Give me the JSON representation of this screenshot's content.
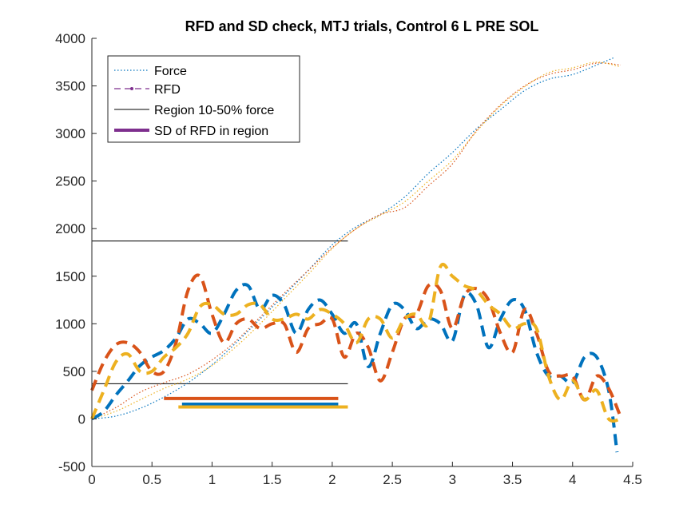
{
  "chart_data": {
    "type": "line",
    "title": "RFD and SD check, MTJ trials, Control 6 L PRE SOL",
    "xlabel": "",
    "ylabel": "",
    "xlim": [
      0,
      4.5
    ],
    "ylim": [
      -500,
      4000
    ],
    "x_ticks": [
      "0",
      "0.5",
      "1",
      "1.5",
      "2",
      "2.5",
      "3",
      "3.5",
      "4",
      "4.5"
    ],
    "y_ticks": [
      "-500",
      "0",
      "500",
      "1000",
      "1500",
      "2000",
      "2500",
      "3000",
      "3500",
      "4000"
    ],
    "grid": false,
    "legend_position": "top-left",
    "legend": [
      {
        "label": "Force",
        "style": "dotted"
      },
      {
        "label": "RFD",
        "style": "dashed-marker"
      },
      {
        "label": "Region 10-50% force",
        "style": "solid-thin"
      },
      {
        "label": "SD of RFD in region",
        "style": "solid-thick"
      }
    ],
    "colors": {
      "trial1": "#0072BD",
      "trial2": "#D95319",
      "trial3": "#EDB120",
      "legend_rfd": "#7E2F8E",
      "axis": "#262626",
      "region": "#000000"
    },
    "force_series": [
      {
        "name": "",
        "color": "#0072BD",
        "x": [
          0,
          0.2,
          0.4,
          0.6,
          0.8,
          1.0,
          1.2,
          1.4,
          1.6,
          1.8,
          2.0,
          2.2,
          2.4,
          2.6,
          2.8,
          3.0,
          3.2,
          3.4,
          3.6,
          3.8,
          4.0,
          4.2,
          4.35
        ],
        "y": [
          0,
          30,
          110,
          230,
          380,
          570,
          800,
          1050,
          1300,
          1560,
          1830,
          2020,
          2150,
          2330,
          2580,
          2800,
          3050,
          3250,
          3450,
          3570,
          3620,
          3720,
          3800
        ]
      },
      {
        "name": "",
        "color": "#D95319",
        "x": [
          0,
          0.2,
          0.4,
          0.6,
          0.8,
          1.0,
          1.2,
          1.4,
          1.6,
          1.8,
          2.0,
          2.2,
          2.4,
          2.6,
          2.8,
          3.0,
          3.2,
          3.4,
          3.6,
          3.8,
          4.0,
          4.2,
          4.4
        ],
        "y": [
          0,
          120,
          280,
          380,
          470,
          620,
          820,
          1070,
          1320,
          1560,
          1800,
          2000,
          2150,
          2220,
          2450,
          2680,
          3030,
          3300,
          3500,
          3620,
          3670,
          3740,
          3720
        ]
      },
      {
        "name": "",
        "color": "#EDB120",
        "x": [
          0,
          0.2,
          0.4,
          0.6,
          0.8,
          1.0,
          1.2,
          1.4,
          1.6,
          1.8,
          2.0,
          2.2,
          2.4,
          2.6,
          2.8,
          3.0,
          3.2,
          3.4,
          3.6,
          3.8,
          4.0,
          4.2,
          4.4
        ],
        "y": [
          0,
          80,
          200,
          320,
          420,
          560,
          760,
          1000,
          1260,
          1520,
          1790,
          2000,
          2140,
          2280,
          2500,
          2720,
          3020,
          3290,
          3490,
          3640,
          3690,
          3750,
          3700
        ]
      }
    ],
    "rfd_series": [
      {
        "name": "",
        "color": "#0072BD",
        "x": [
          0,
          0.1,
          0.2,
          0.3,
          0.4,
          0.5,
          0.6,
          0.7,
          0.8,
          0.9,
          1.0,
          1.1,
          1.2,
          1.3,
          1.4,
          1.5,
          1.6,
          1.7,
          1.8,
          1.9,
          2.0,
          2.1,
          2.2,
          2.3,
          2.4,
          2.5,
          2.6,
          2.7,
          2.8,
          2.9,
          3.0,
          3.1,
          3.2,
          3.3,
          3.4,
          3.5,
          3.6,
          3.7,
          3.8,
          3.9,
          4.0,
          4.1,
          4.2,
          4.3,
          4.37
        ],
        "y": [
          0,
          80,
          250,
          400,
          560,
          650,
          720,
          850,
          1050,
          1000,
          900,
          1100,
          1350,
          1400,
          1150,
          1300,
          1200,
          900,
          1150,
          1250,
          1100,
          900,
          1000,
          550,
          900,
          1200,
          1150,
          950,
          1050,
          1000,
          820,
          1300,
          1200,
          750,
          1050,
          1250,
          1150,
          700,
          450,
          450,
          380,
          650,
          650,
          300,
          -350
        ]
      },
      {
        "name": "",
        "color": "#D95319",
        "x": [
          0,
          0.1,
          0.2,
          0.3,
          0.4,
          0.5,
          0.6,
          0.7,
          0.8,
          0.9,
          1.0,
          1.1,
          1.2,
          1.3,
          1.4,
          1.5,
          1.6,
          1.7,
          1.8,
          1.9,
          2.0,
          2.1,
          2.2,
          2.3,
          2.4,
          2.5,
          2.6,
          2.7,
          2.8,
          2.9,
          3.0,
          3.1,
          3.2,
          3.3,
          3.4,
          3.5,
          3.6,
          3.7,
          3.8,
          3.9,
          4.0,
          4.1,
          4.2,
          4.3,
          4.4
        ],
        "y": [
          300,
          600,
          780,
          800,
          700,
          500,
          500,
          800,
          1350,
          1500,
          1100,
          800,
          1000,
          1050,
          950,
          1000,
          1000,
          700,
          950,
          1000,
          1050,
          650,
          900,
          750,
          400,
          700,
          1050,
          1100,
          1400,
          1350,
          950,
          1300,
          1370,
          1250,
          900,
          700,
          1150,
          900,
          500,
          450,
          450,
          200,
          450,
          320,
          20
        ]
      },
      {
        "name": "",
        "color": "#EDB120",
        "x": [
          0,
          0.1,
          0.2,
          0.3,
          0.4,
          0.5,
          0.6,
          0.7,
          0.8,
          0.9,
          1.0,
          1.1,
          1.2,
          1.3,
          1.4,
          1.5,
          1.6,
          1.7,
          1.8,
          1.9,
          2.0,
          2.1,
          2.2,
          2.3,
          2.4,
          2.5,
          2.6,
          2.7,
          2.8,
          2.9,
          3.0,
          3.1,
          3.2,
          3.3,
          3.4,
          3.5,
          3.6,
          3.7,
          3.8,
          3.9,
          4.0,
          4.1,
          4.2,
          4.3,
          4.4
        ],
        "y": [
          0,
          300,
          600,
          680,
          500,
          500,
          650,
          750,
          900,
          1180,
          1200,
          1100,
          1100,
          1200,
          1200,
          1050,
          1050,
          1100,
          1050,
          1150,
          1100,
          1000,
          800,
          1050,
          1050,
          850,
          1050,
          1100,
          1000,
          1600,
          1500,
          1400,
          1350,
          1200,
          1100,
          950,
          1000,
          950,
          450,
          200,
          400,
          200,
          300,
          0,
          0
        ]
      }
    ],
    "region_lines": [
      {
        "y": 1870,
        "x": [
          0,
          2.13
        ]
      },
      {
        "y": 370,
        "x": [
          0,
          2.13
        ]
      }
    ],
    "sd_bars": [
      {
        "color": "#D95319",
        "y": 215,
        "x": [
          0.6,
          2.05
        ]
      },
      {
        "color": "#0072BD",
        "y": 155,
        "x": [
          0.75,
          2.05
        ]
      },
      {
        "color": "#EDB120",
        "y": 125,
        "x": [
          0.72,
          2.13
        ]
      }
    ]
  }
}
